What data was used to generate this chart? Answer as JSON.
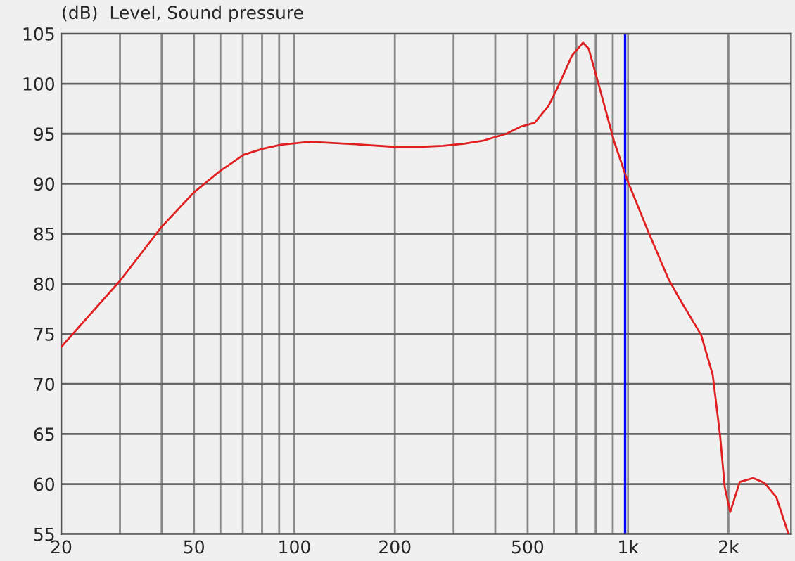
{
  "chart_data": {
    "type": "line",
    "title": "(dB)  Level, Sound pressure",
    "series": [
      {
        "color": "#e02020",
        "x": [
          20,
          30,
          40,
          50.2,
          60,
          70.5,
          80.3,
          91,
          111,
          153,
          198,
          241,
          279,
          323,
          367,
          432,
          476,
          525,
          578,
          617,
          679,
          733,
          762,
          823,
          907,
          994,
          1144,
          1321,
          1433,
          1656,
          1794,
          1888,
          1949,
          2024,
          2162,
          2371,
          2567,
          2782,
          3027
        ],
        "values": [
          73.7,
          80.3,
          85.7,
          89.2,
          91.3,
          92.9,
          93.5,
          93.9,
          94.2,
          93.95,
          93.7,
          93.7,
          93.8,
          94.0,
          94.3,
          95.0,
          95.7,
          96.1,
          97.8,
          99.7,
          102.8,
          104.1,
          103.5,
          99.5,
          94.3,
          90.4,
          85.4,
          80.5,
          78.4,
          74.9,
          70.9,
          64.8,
          59.7,
          57.2,
          60.2,
          60.6,
          60.1,
          58.7,
          55.0
        ]
      }
    ],
    "log": "x",
    "xlim": [
      20,
      3080
    ],
    "ylim": [
      55,
      105
    ],
    "xticks": [
      20,
      {
        "value": 30,
        "label": null
      },
      {
        "value": 40,
        "label": null
      },
      50,
      {
        "value": 60,
        "label": null
      },
      {
        "value": 70,
        "label": null
      },
      {
        "value": 80,
        "label": null
      },
      {
        "value": 90,
        "label": null
      },
      100,
      200,
      {
        "value": 300,
        "label": null
      },
      {
        "value": 400,
        "label": null
      },
      500,
      {
        "value": 600,
        "label": null
      },
      {
        "value": 700,
        "label": null
      },
      {
        "value": 800,
        "label": null
      },
      {
        "value": 900,
        "label": null
      },
      {
        "value": 1000,
        "label": "1k"
      },
      {
        "value": 2000,
        "label": "2k"
      }
    ],
    "yticks": [
      55,
      60,
      65,
      70,
      75,
      80,
      85,
      90,
      95,
      100,
      105
    ],
    "grid": true,
    "legend": false,
    "marker": "none",
    "line_style": "solid",
    "ref_lines": [
      {
        "axis": "x",
        "value": 980,
        "label": null,
        "color": "#0000ff"
      }
    ]
  }
}
